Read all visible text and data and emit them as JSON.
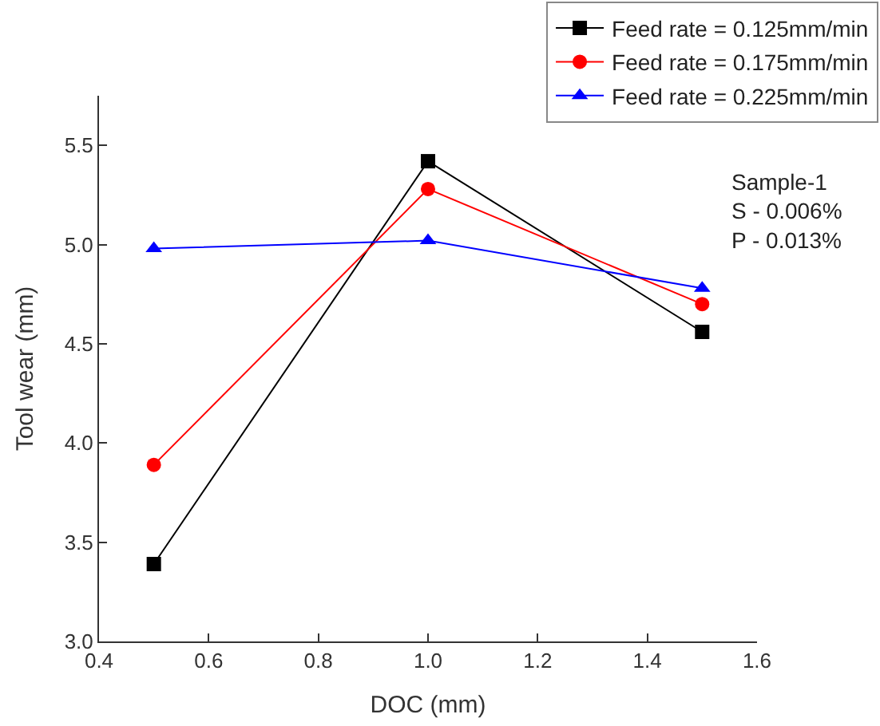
{
  "chart_data": {
    "type": "line",
    "xlabel": "DOC (mm)",
    "ylabel": "Tool wear (mm)",
    "x": [
      0.5,
      1.0,
      1.5
    ],
    "series": [
      {
        "name": "Feed rate = 0.125mm/min",
        "color": "#000000",
        "marker": "square",
        "values": [
          3.39,
          5.42,
          4.56
        ]
      },
      {
        "name": "Feed rate = 0.175mm/min",
        "color": "#ff0000",
        "marker": "circle",
        "values": [
          3.89,
          5.28,
          4.7
        ]
      },
      {
        "name": "Feed rate = 0.225mm/min",
        "color": "#0000ff",
        "marker": "triangle",
        "values": [
          4.98,
          5.02,
          4.78
        ]
      }
    ],
    "xlim": [
      0.4,
      1.6
    ],
    "xticks": [
      0.4,
      0.6,
      0.8,
      {
        "value": 1,
        "label": "1.0"
      },
      1.2,
      1.4,
      1.6
    ],
    "ylim": [
      3.0,
      5.75
    ],
    "yticks": [
      {
        "value": 3,
        "label": "3.0"
      },
      3.5,
      {
        "value": 4,
        "label": "4.0"
      },
      4.5,
      {
        "value": 5,
        "label": "5.0"
      },
      5.5
    ],
    "annotations": [
      "Sample-1\nS - 0.006%\nP - 0.013%"
    ],
    "legend": "top right",
    "line_style": "solid"
  }
}
